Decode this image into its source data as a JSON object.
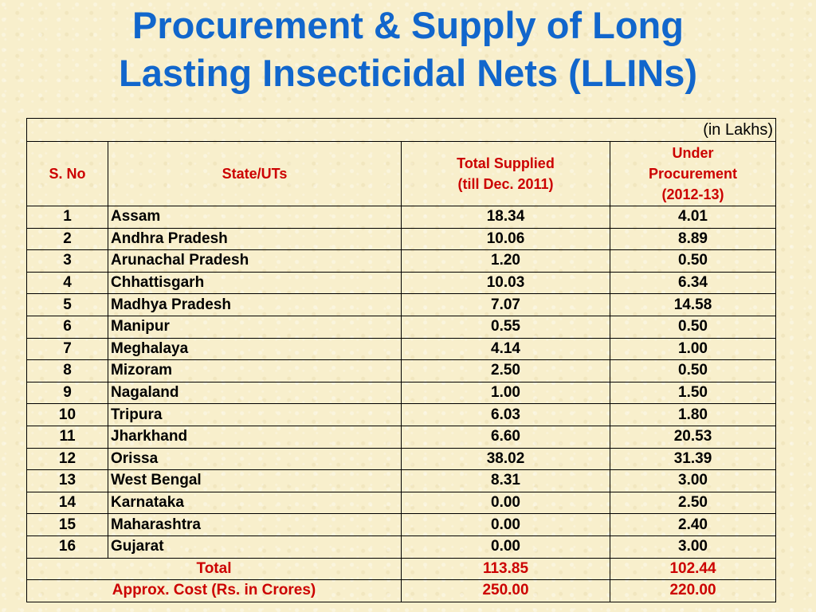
{
  "title": {
    "line1": "Procurement & Supply of Long",
    "line2": "Lasting Insecticidal Nets (LLINs)"
  },
  "table": {
    "unit_note": "(in Lakhs)",
    "headers": {
      "sno": "S. No",
      "state": "State/UTs",
      "supplied": "Total Supplied\n(till Dec. 2011)",
      "procurement": "Under\nProcurement\n(2012-13)"
    },
    "rows": [
      {
        "sno": "1",
        "state": "Assam",
        "supplied": "18.34",
        "procurement": "4.01"
      },
      {
        "sno": "2",
        "state": "Andhra Pradesh",
        "supplied": "10.06",
        "procurement": "8.89"
      },
      {
        "sno": "3",
        "state": "Arunachal Pradesh",
        "supplied": "1.20",
        "procurement": "0.50"
      },
      {
        "sno": "4",
        "state": "Chhattisgarh",
        "supplied": "10.03",
        "procurement": "6.34"
      },
      {
        "sno": "5",
        "state": "Madhya Pradesh",
        "supplied": "7.07",
        "procurement": "14.58"
      },
      {
        "sno": "6",
        "state": "Manipur",
        "supplied": "0.55",
        "procurement": "0.50"
      },
      {
        "sno": "7",
        "state": "Meghalaya",
        "supplied": "4.14",
        "procurement": "1.00"
      },
      {
        "sno": "8",
        "state": "Mizoram",
        "supplied": "2.50",
        "procurement": "0.50"
      },
      {
        "sno": "9",
        "state": "Nagaland",
        "supplied": "1.00",
        "procurement": "1.50"
      },
      {
        "sno": "10",
        "state": "Tripura",
        "supplied": "6.03",
        "procurement": "1.80"
      },
      {
        "sno": "11",
        "state": "Jharkhand",
        "supplied": "6.60",
        "procurement": "20.53"
      },
      {
        "sno": "12",
        "state": "Orissa",
        "supplied": "38.02",
        "procurement": "31.39"
      },
      {
        "sno": "13",
        "state": "West Bengal",
        "supplied": "8.31",
        "procurement": "3.00"
      },
      {
        "sno": "14",
        "state": "Karnataka",
        "supplied": "0.00",
        "procurement": "2.50"
      },
      {
        "sno": "15",
        "state": "Maharashtra",
        "supplied": "0.00",
        "procurement": "2.40"
      },
      {
        "sno": "16",
        "state": "Gujarat",
        "supplied": "0.00",
        "procurement": "3.00"
      }
    ],
    "total": {
      "label": "Total",
      "supplied": "113.85",
      "procurement": "102.44"
    },
    "cost": {
      "label": "Approx. Cost (Rs. in Crores)",
      "supplied": "250.00",
      "procurement": "220.00"
    }
  }
}
